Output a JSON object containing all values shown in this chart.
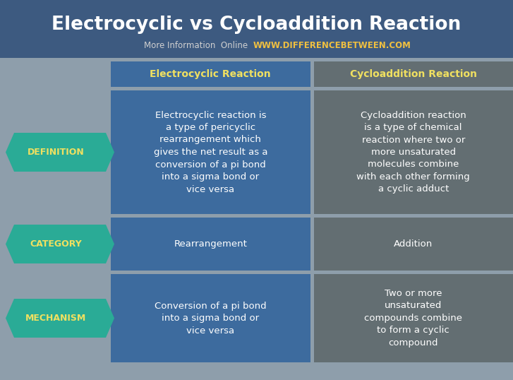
{
  "title": "Electrocyclic vs Cycloaddition Reaction",
  "subtitle_normal": "More Information  Online  ",
  "subtitle_bold": "WWW.DIFFERENCEBETWEEN.COM",
  "bg_color": "#8e9eab",
  "header_bg": "#3d5a80",
  "cell_blue": "#3d6b9e",
  "cell_grey": "#636e72",
  "arrow_color": "#2aab96",
  "title_color": "#ffffff",
  "subtitle_normal_color": "#d0d0d0",
  "subtitle_bold_color": "#f0c040",
  "header_text_color": "#f0e060",
  "cell_text_color": "#ffffff",
  "row_label_color": "#f0e060",
  "col_headers": [
    "Electrocyclic Reaction",
    "Cycloaddition Reaction"
  ],
  "row_labels": [
    "DEFINITION",
    "CATEGORY",
    "MECHANISM"
  ],
  "col1_cells": [
    "Electrocyclic reaction is\na type of pericyclic\nrearrangement which\ngives the net result as a\nconversion of a pi bond\ninto a sigma bond or\nvice versa",
    "Rearrangement",
    "Conversion of a pi bond\ninto a sigma bond or\nvice versa"
  ],
  "col2_cells": [
    "Cycloaddition reaction\nis a type of chemical\nreaction where two or\nmore unsaturated\nmolecules combine\nwith each other forming\na cyclic adduct",
    "Addition",
    "Two or more\nunsaturated\ncompounds combine\nto form a cyclic\ncompound"
  ],
  "fig_w": 7.27,
  "fig_h": 5.38,
  "dpi": 100
}
